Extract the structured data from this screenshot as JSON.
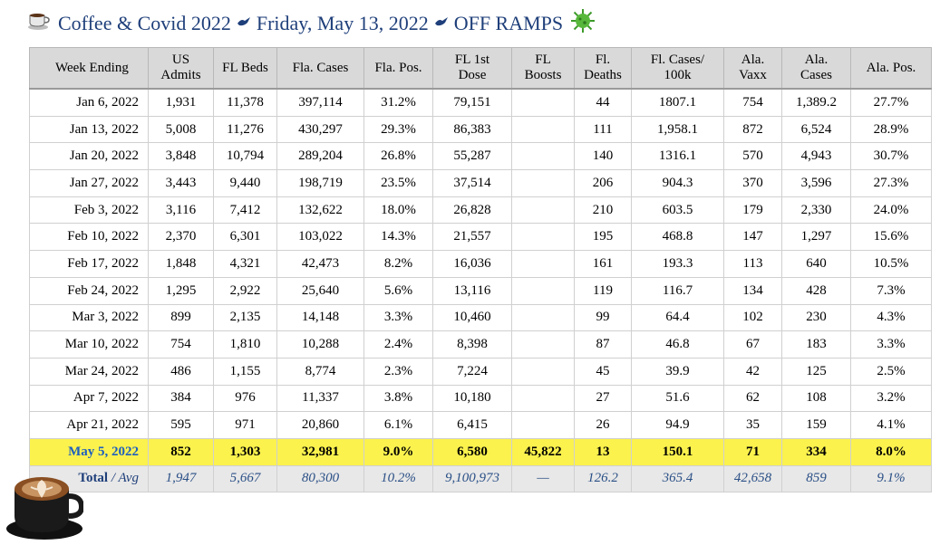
{
  "header": {
    "title_main": "Coffee & Covid 2022",
    "title_date": "Friday, May 13, 2022",
    "title_topic": "OFF RAMPS",
    "coffee_icon": "coffee-cup-icon",
    "separator_icon": "dove-icon",
    "virus_icon": "virus-icon"
  },
  "table": {
    "columns": [
      "Week Ending",
      "US\nAdmits",
      "FL Beds",
      "Fla. Cases",
      "Fla. Pos.",
      "FL 1st\nDose",
      "FL\nBoosts",
      "Fl.\nDeaths",
      "Fl. Cases/\n100k",
      "Ala.\nVaxx",
      "Ala.\nCases",
      "Ala. Pos."
    ],
    "rows": [
      [
        "Jan 6, 2022",
        "1,931",
        "11,378",
        "397,114",
        "31.2%",
        "79,151",
        "",
        "44",
        "1807.1",
        "754",
        "1,389.2",
        "27.7%"
      ],
      [
        "Jan 13, 2022",
        "5,008",
        "11,276",
        "430,297",
        "29.3%",
        "86,383",
        "",
        "111",
        "1,958.1",
        "872",
        "6,524",
        "28.9%"
      ],
      [
        "Jan 20, 2022",
        "3,848",
        "10,794",
        "289,204",
        "26.8%",
        "55,287",
        "",
        "140",
        "1316.1",
        "570",
        "4,943",
        "30.7%"
      ],
      [
        "Jan 27, 2022",
        "3,443",
        "9,440",
        "198,719",
        "23.5%",
        "37,514",
        "",
        "206",
        "904.3",
        "370",
        "3,596",
        "27.3%"
      ],
      [
        "Feb 3, 2022",
        "3,116",
        "7,412",
        "132,622",
        "18.0%",
        "26,828",
        "",
        "210",
        "603.5",
        "179",
        "2,330",
        "24.0%"
      ],
      [
        "Feb 10, 2022",
        "2,370",
        "6,301",
        "103,022",
        "14.3%",
        "21,557",
        "",
        "195",
        "468.8",
        "147",
        "1,297",
        "15.6%"
      ],
      [
        "Feb 17, 2022",
        "1,848",
        "4,321",
        "42,473",
        "8.2%",
        "16,036",
        "",
        "161",
        "193.3",
        "113",
        "640",
        "10.5%"
      ],
      [
        "Feb 24, 2022",
        "1,295",
        "2,922",
        "25,640",
        "5.6%",
        "13,116",
        "",
        "119",
        "116.7",
        "134",
        "428",
        "7.3%"
      ],
      [
        "Mar 3, 2022",
        "899",
        "2,135",
        "14,148",
        "3.3%",
        "10,460",
        "",
        "99",
        "64.4",
        "102",
        "230",
        "4.3%"
      ],
      [
        "Mar 10, 2022",
        "754",
        "1,810",
        "10,288",
        "2.4%",
        "8,398",
        "",
        "87",
        "46.8",
        "67",
        "183",
        "3.3%"
      ],
      [
        "Mar 24, 2022",
        "486",
        "1,155",
        "8,774",
        "2.3%",
        "7,224",
        "",
        "45",
        "39.9",
        "42",
        "125",
        "2.5%"
      ],
      [
        "Apr 7, 2022",
        "384",
        "976",
        "11,337",
        "3.8%",
        "10,180",
        "",
        "27",
        "51.6",
        "62",
        "108",
        "3.2%"
      ],
      [
        "Apr 21, 2022",
        "595",
        "971",
        "20,860",
        "6.1%",
        "6,415",
        "",
        "26",
        "94.9",
        "35",
        "159",
        "4.1%"
      ]
    ],
    "highlight_row": [
      "May 5, 2022",
      "852",
      "1,303",
      "32,981",
      "9.0%",
      "6,580",
      "45,822",
      "13",
      "150.1",
      "71",
      "334",
      "8.0%"
    ],
    "total_label": "Total",
    "total_sep": " / ",
    "avg_label": "Avg",
    "total_row": [
      "1,947",
      "5,667",
      "80,300",
      "10.2%",
      "9,100,973",
      "—",
      "126.2",
      "365.4",
      "42,658",
      "859",
      "9.1%"
    ],
    "colors": {
      "header_bg": "#d9d9d9",
      "highlight_bg": "#fbf24d",
      "highlight_date": "#1d5fbf",
      "title": "#1f3f7a",
      "total_bg": "#e8e8e8"
    }
  },
  "decor": {
    "latte_icon": "latte-art-cup-icon"
  }
}
